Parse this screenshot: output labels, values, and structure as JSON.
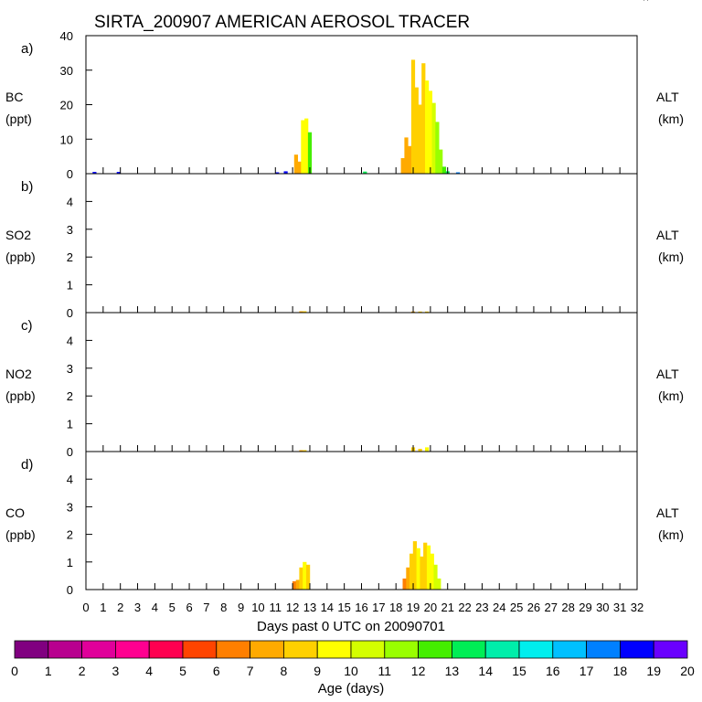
{
  "title": "SIRTA_200907 AMERICAN AEROSOL TRACER",
  "corner_mark": "^",
  "xlabel": "Days past 0 UTC on 20090701",
  "x_ticks": [
    "0",
    "1",
    "2",
    "3",
    "4",
    "5",
    "6",
    "7",
    "8",
    "9",
    "10",
    "11",
    "12",
    "13",
    "14",
    "15",
    "16",
    "17",
    "18",
    "19",
    "20",
    "21",
    "22",
    "23",
    "24",
    "25",
    "26",
    "27",
    "28",
    "29",
    "30",
    "31",
    "32"
  ],
  "colorbar": {
    "label": "Age (days)",
    "ticks": [
      "0",
      "1",
      "2",
      "3",
      "4",
      "5",
      "6",
      "7",
      "8",
      "9",
      "10",
      "11",
      "12",
      "13",
      "14",
      "15",
      "16",
      "17",
      "18",
      "19",
      "20"
    ],
    "colors": [
      "#800080",
      "#b8008f",
      "#e0009a",
      "#ff0090",
      "#ff0050",
      "#ff4400",
      "#ff7f00",
      "#ffaa00",
      "#ffd000",
      "#ffff00",
      "#d4ff00",
      "#99ff00",
      "#44ee00",
      "#00ee55",
      "#00eeaa",
      "#00eeee",
      "#00c0ff",
      "#0080ff",
      "#0000ff",
      "#6a00ff"
    ]
  },
  "chart_data": [
    {
      "type": "bar",
      "panel": "a)",
      "ylabel": "BC",
      "units": "(ppt)",
      "right_label": "ALT",
      "right_units": "(km)",
      "ylim": [
        0,
        40
      ],
      "yticks": [
        0,
        10,
        20,
        30,
        40
      ],
      "x": [
        0.5,
        1.9,
        11.1,
        11.6,
        12.2,
        12.4,
        12.6,
        12.8,
        13.0,
        16.2,
        18.4,
        18.6,
        18.8,
        19.0,
        19.2,
        19.4,
        19.6,
        19.8,
        20.0,
        20.2,
        20.4,
        20.6,
        20.8,
        21.0,
        21.6
      ],
      "y": [
        0.5,
        0.5,
        0.4,
        0.7,
        5.5,
        3.5,
        15.5,
        16.0,
        12.0,
        0.6,
        4.5,
        10.5,
        8.0,
        33.0,
        25.0,
        20.0,
        32.0,
        27.0,
        24.0,
        20.5,
        15.0,
        7.0,
        2.0,
        0.7,
        0.4
      ],
      "age_days": [
        18,
        18,
        18,
        18,
        7,
        7,
        9,
        9,
        12,
        13,
        7,
        7,
        7,
        8,
        8,
        8,
        8,
        9,
        9,
        10,
        11,
        11,
        12,
        13,
        17
      ]
    },
    {
      "type": "bar",
      "panel": "b)",
      "ylabel": "SO2",
      "units": "(ppb)",
      "right_label": "ALT",
      "right_units": "(km)",
      "ylim": [
        0,
        5
      ],
      "yticks": [
        0,
        1,
        2,
        3,
        4
      ],
      "x": [
        12.5,
        12.7,
        19.0,
        19.4,
        19.8
      ],
      "y": [
        0.05,
        0.05,
        0.04,
        0.04,
        0.04
      ],
      "age_days": [
        7,
        8,
        7,
        8,
        8
      ]
    },
    {
      "type": "bar",
      "panel": "c)",
      "ylabel": "NO2",
      "units": "(ppb)",
      "right_label": "ALT",
      "right_units": "(km)",
      "ylim": [
        0,
        5
      ],
      "yticks": [
        0,
        1,
        2,
        3,
        4
      ],
      "x": [
        12.5,
        12.7,
        19.0,
        19.4,
        19.8
      ],
      "y": [
        0.05,
        0.05,
        0.15,
        0.1,
        0.15
      ],
      "age_days": [
        7,
        8,
        8,
        8,
        9
      ]
    },
    {
      "type": "bar",
      "panel": "d)",
      "ylabel": "CO",
      "units": "(ppb)",
      "right_label": "ALT",
      "right_units": "(km)",
      "ylim": [
        0,
        5
      ],
      "yticks": [
        0,
        1,
        2,
        3,
        4
      ],
      "x": [
        12.1,
        12.3,
        12.5,
        12.7,
        12.9,
        18.5,
        18.7,
        18.9,
        19.1,
        19.3,
        19.5,
        19.7,
        19.9,
        20.1,
        20.3,
        20.5
      ],
      "y": [
        0.3,
        0.35,
        0.8,
        1.0,
        0.9,
        0.4,
        0.8,
        1.3,
        1.75,
        1.5,
        1.2,
        1.7,
        1.6,
        1.3,
        0.9,
        0.4
      ],
      "age_days": [
        6,
        7,
        8,
        9,
        8,
        6,
        7,
        8,
        8,
        9,
        8,
        8,
        9,
        9,
        10,
        10
      ]
    }
  ]
}
